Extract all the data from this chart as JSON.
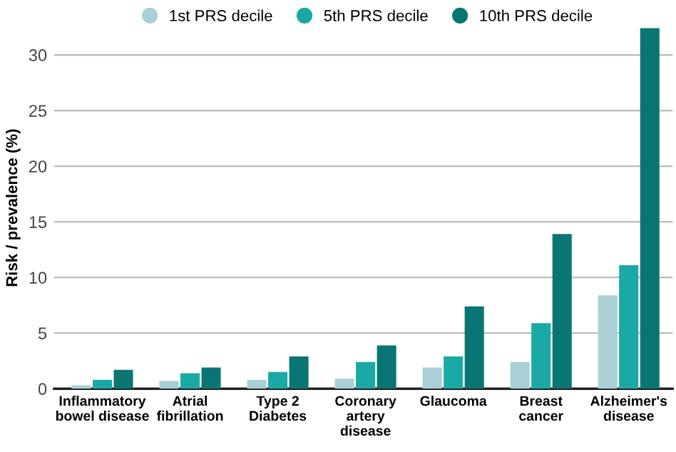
{
  "chart_data": {
    "type": "bar",
    "ylabel": "Risk / prevalence (%)",
    "categories": [
      "Inflammatory\nbowel disease",
      "Atrial\nfibrillation",
      "Type 2\nDiabetes",
      "Coronary\nartery\ndisease",
      "Glaucoma",
      "Breast\ncancer",
      "Alzheimer's\ndisease"
    ],
    "series": [
      {
        "name": "1st PRS decile",
        "color": "#a8d0d6",
        "values": [
          0.3,
          0.7,
          0.8,
          0.9,
          1.9,
          2.4,
          8.4
        ]
      },
      {
        "name": "5th PRS decile",
        "color": "#1aa9a4",
        "values": [
          0.8,
          1.4,
          1.5,
          2.4,
          2.9,
          5.9,
          11.1
        ]
      },
      {
        "name": "10th PRS decile",
        "color": "#0a7673",
        "values": [
          1.7,
          1.9,
          2.9,
          3.9,
          7.4,
          13.9,
          32.4
        ]
      }
    ],
    "ylim": [
      0,
      32.5
    ],
    "yticks": [
      0,
      5,
      10,
      15,
      20,
      25,
      30
    ],
    "grid": "y",
    "legend": "top"
  }
}
